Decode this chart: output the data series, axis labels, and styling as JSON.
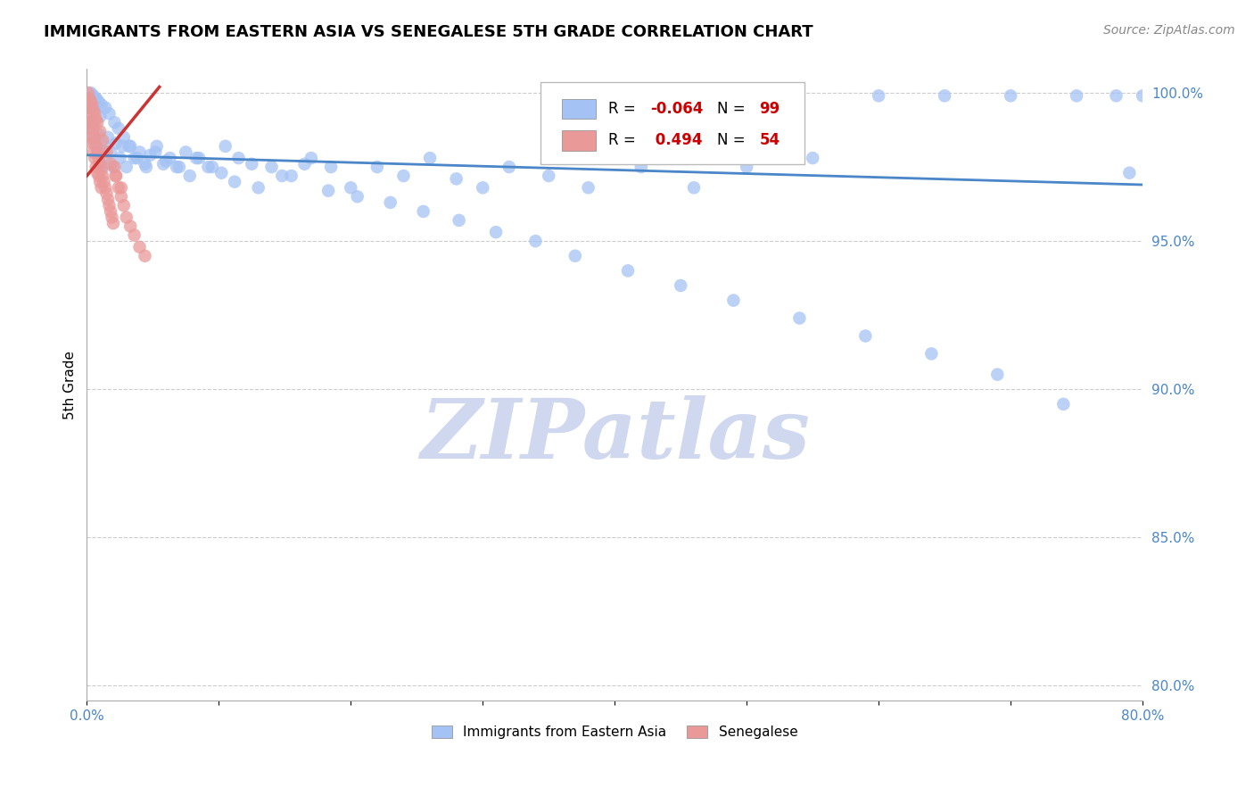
{
  "title": "IMMIGRANTS FROM EASTERN ASIA VS SENEGALESE 5TH GRADE CORRELATION CHART",
  "source": "Source: ZipAtlas.com",
  "ylabel": "5th Grade",
  "xlim": [
    0.0,
    0.8
  ],
  "ylim": [
    0.795,
    1.008
  ],
  "xticks": [
    0.0,
    0.1,
    0.2,
    0.3,
    0.4,
    0.5,
    0.6,
    0.7,
    0.8
  ],
  "xtick_labels": [
    "0.0%",
    "",
    "",
    "",
    "",
    "",
    "",
    "",
    "80.0%"
  ],
  "yticks": [
    0.8,
    0.85,
    0.9,
    0.95,
    1.0
  ],
  "ytick_labels": [
    "80.0%",
    "85.0%",
    "90.0%",
    "95.0%",
    "100.0%"
  ],
  "blue_R": -0.064,
  "blue_N": 99,
  "pink_R": 0.494,
  "pink_N": 54,
  "blue_color": "#a4c2f4",
  "pink_color": "#ea9999",
  "blue_line_color": "#4a86c8",
  "pink_line_color": "#cc3333",
  "watermark": "ZIPatlas",
  "watermark_color": "#d0d8f0",
  "legend_blue_label": "Immigrants from Eastern Asia",
  "legend_pink_label": "Senegalese",
  "blue_line_x0": 0.0,
  "blue_line_y0": 0.979,
  "blue_line_x1": 0.8,
  "blue_line_y1": 0.969,
  "pink_line_x0": 0.0,
  "pink_line_y0": 0.972,
  "pink_line_x1": 0.055,
  "pink_line_y1": 1.002,
  "blue_scatter_x": [
    0.002,
    0.003,
    0.004,
    0.005,
    0.006,
    0.007,
    0.008,
    0.009,
    0.01,
    0.011,
    0.012,
    0.013,
    0.015,
    0.016,
    0.018,
    0.02,
    0.022,
    0.025,
    0.027,
    0.03,
    0.033,
    0.036,
    0.04,
    0.044,
    0.048,
    0.053,
    0.058,
    0.063,
    0.07,
    0.078,
    0.085,
    0.095,
    0.105,
    0.115,
    0.125,
    0.14,
    0.155,
    0.17,
    0.185,
    0.2,
    0.22,
    0.24,
    0.26,
    0.28,
    0.3,
    0.32,
    0.35,
    0.38,
    0.42,
    0.46,
    0.5,
    0.55,
    0.6,
    0.65,
    0.7,
    0.75,
    0.78,
    0.79,
    0.8,
    0.003,
    0.005,
    0.007,
    0.009,
    0.011,
    0.014,
    0.017,
    0.021,
    0.024,
    0.028,
    0.032,
    0.038,
    0.045,
    0.052,
    0.06,
    0.068,
    0.075,
    0.083,
    0.092,
    0.102,
    0.112,
    0.13,
    0.148,
    0.165,
    0.183,
    0.205,
    0.23,
    0.255,
    0.282,
    0.31,
    0.34,
    0.37,
    0.41,
    0.45,
    0.49,
    0.54,
    0.59,
    0.64,
    0.69,
    0.74
  ],
  "blue_scatter_y": [
    0.99,
    0.988,
    0.995,
    0.985,
    0.983,
    0.998,
    0.98,
    0.986,
    0.992,
    0.975,
    0.98,
    0.982,
    0.978,
    0.985,
    0.98,
    0.975,
    0.983,
    0.978,
    0.982,
    0.975,
    0.982,
    0.978,
    0.98,
    0.976,
    0.979,
    0.982,
    0.976,
    0.978,
    0.975,
    0.972,
    0.978,
    0.975,
    0.982,
    0.978,
    0.976,
    0.975,
    0.972,
    0.978,
    0.975,
    0.968,
    0.975,
    0.972,
    0.978,
    0.971,
    0.968,
    0.975,
    0.972,
    0.968,
    0.975,
    0.968,
    0.975,
    0.978,
    0.999,
    0.999,
    0.999,
    0.999,
    0.999,
    0.973,
    0.999,
    1.0,
    0.999,
    0.998,
    0.997,
    0.996,
    0.995,
    0.993,
    0.99,
    0.988,
    0.985,
    0.982,
    0.978,
    0.975,
    0.98,
    0.977,
    0.975,
    0.98,
    0.978,
    0.975,
    0.973,
    0.97,
    0.968,
    0.972,
    0.976,
    0.967,
    0.965,
    0.963,
    0.96,
    0.957,
    0.953,
    0.95,
    0.945,
    0.94,
    0.935,
    0.93,
    0.924,
    0.918,
    0.912,
    0.905,
    0.895
  ],
  "pink_scatter_x": [
    0.001,
    0.002,
    0.002,
    0.003,
    0.003,
    0.004,
    0.004,
    0.005,
    0.005,
    0.006,
    0.006,
    0.007,
    0.007,
    0.008,
    0.008,
    0.009,
    0.009,
    0.01,
    0.01,
    0.011,
    0.011,
    0.012,
    0.013,
    0.014,
    0.015,
    0.016,
    0.017,
    0.018,
    0.019,
    0.02,
    0.021,
    0.022,
    0.024,
    0.026,
    0.028,
    0.03,
    0.033,
    0.036,
    0.04,
    0.044,
    0.001,
    0.002,
    0.003,
    0.004,
    0.005,
    0.006,
    0.007,
    0.008,
    0.01,
    0.012,
    0.015,
    0.018,
    0.022,
    0.026
  ],
  "pink_scatter_y": [
    0.99,
    0.995,
    0.988,
    0.992,
    0.985,
    0.99,
    0.983,
    0.988,
    0.98,
    0.985,
    0.978,
    0.982,
    0.975,
    0.98,
    0.973,
    0.978,
    0.972,
    0.976,
    0.97,
    0.974,
    0.968,
    0.972,
    0.97,
    0.968,
    0.966,
    0.964,
    0.962,
    0.96,
    0.958,
    0.956,
    0.975,
    0.972,
    0.968,
    0.965,
    0.962,
    0.958,
    0.955,
    0.952,
    0.948,
    0.945,
    1.0,
    0.998,
    0.997,
    0.996,
    0.994,
    0.993,
    0.991,
    0.99,
    0.987,
    0.984,
    0.98,
    0.976,
    0.972,
    0.968
  ]
}
